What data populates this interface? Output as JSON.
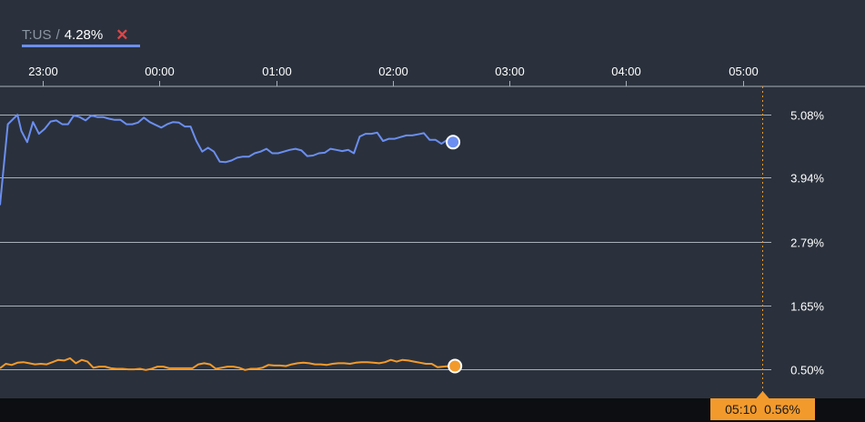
{
  "legend": {
    "symbol": "T:US",
    "separator": "/",
    "value": "4.28%",
    "close_glyph": "✕",
    "underline_color": "#6b8ef0",
    "close_color": "#e24545"
  },
  "crosshair": {
    "time": "05:10",
    "value": "0.56%",
    "color": "#f39a2c"
  },
  "colors": {
    "background": "#2a313c",
    "grid": "#a9b0b8",
    "axis_text": "#ffffff",
    "series_blue": "#6b8ef0",
    "series_orange": "#f39a2c"
  },
  "chart_data": {
    "type": "line",
    "x_ticks": [
      "23:00",
      "00:00",
      "01:00",
      "02:00",
      "03:00",
      "04:00",
      "05:00"
    ],
    "y_ticks": [
      "5.08%",
      "3.94%",
      "2.79%",
      "1.65%",
      "0.50%"
    ],
    "y_tick_values": [
      5.08,
      3.94,
      2.79,
      1.65,
      0.5
    ],
    "ylim": [
      -0.02,
      5.58
    ],
    "x_start": "22:38",
    "x_end": "05:10",
    "grid": true,
    "series": [
      {
        "name": "T:US",
        "color": "#6b8ef0",
        "marker_end": true,
        "points": [
          [
            "22:38",
            3.45
          ],
          [
            "22:42",
            4.9
          ],
          [
            "22:47",
            5.07
          ],
          [
            "22:49",
            4.78
          ],
          [
            "22:52",
            4.58
          ],
          [
            "22:55",
            4.94
          ],
          [
            "22:58",
            4.73
          ],
          [
            "23:01",
            4.82
          ],
          [
            "23:04",
            4.95
          ],
          [
            "23:07",
            4.97
          ],
          [
            "23:10",
            4.9
          ],
          [
            "23:13",
            4.9
          ],
          [
            "23:16",
            5.06
          ],
          [
            "23:19",
            5.03
          ],
          [
            "23:22",
            4.97
          ],
          [
            "23:25",
            5.06
          ],
          [
            "23:28",
            5.03
          ],
          [
            "23:31",
            5.03
          ],
          [
            "23:34",
            5.0
          ],
          [
            "23:37",
            4.98
          ],
          [
            "23:40",
            4.98
          ],
          [
            "23:43",
            4.9
          ],
          [
            "23:46",
            4.9
          ],
          [
            "23:49",
            4.93
          ],
          [
            "23:52",
            5.02
          ],
          [
            "23:55",
            4.94
          ],
          [
            "23:58",
            4.89
          ],
          [
            "00:01",
            4.84
          ],
          [
            "00:04",
            4.9
          ],
          [
            "00:07",
            4.94
          ],
          [
            "00:10",
            4.93
          ],
          [
            "00:13",
            4.86
          ],
          [
            "00:16",
            4.86
          ],
          [
            "00:19",
            4.6
          ],
          [
            "00:22",
            4.41
          ],
          [
            "00:25",
            4.48
          ],
          [
            "00:28",
            4.41
          ],
          [
            "00:31",
            4.23
          ],
          [
            "00:34",
            4.22
          ],
          [
            "00:37",
            4.25
          ],
          [
            "00:40",
            4.3
          ],
          [
            "00:43",
            4.32
          ],
          [
            "00:46",
            4.32
          ],
          [
            "00:49",
            4.38
          ],
          [
            "00:52",
            4.41
          ],
          [
            "00:55",
            4.46
          ],
          [
            "00:58",
            4.38
          ],
          [
            "01:01",
            4.38
          ],
          [
            "01:04",
            4.41
          ],
          [
            "01:07",
            4.44
          ],
          [
            "01:10",
            4.46
          ],
          [
            "01:13",
            4.43
          ],
          [
            "01:16",
            4.33
          ],
          [
            "01:19",
            4.34
          ],
          [
            "01:22",
            4.38
          ],
          [
            "01:25",
            4.39
          ],
          [
            "01:28",
            4.46
          ],
          [
            "01:31",
            4.44
          ],
          [
            "01:34",
            4.42
          ],
          [
            "01:37",
            4.44
          ],
          [
            "01:40",
            4.38
          ],
          [
            "01:43",
            4.68
          ],
          [
            "01:46",
            4.73
          ],
          [
            "01:49",
            4.73
          ],
          [
            "01:52",
            4.75
          ],
          [
            "01:55",
            4.6
          ],
          [
            "01:58",
            4.64
          ],
          [
            "02:01",
            4.64
          ],
          [
            "02:04",
            4.67
          ],
          [
            "02:07",
            4.7
          ],
          [
            "02:10",
            4.7
          ],
          [
            "02:13",
            4.72
          ],
          [
            "02:16",
            4.74
          ],
          [
            "02:19",
            4.62
          ],
          [
            "02:22",
            4.62
          ],
          [
            "02:25",
            4.55
          ],
          [
            "02:28",
            4.62
          ],
          [
            "02:31",
            4.58
          ]
        ]
      },
      {
        "name": "",
        "color": "#f39a2c",
        "marker_end": true,
        "points": [
          [
            "22:38",
            0.52
          ],
          [
            "22:41",
            0.6
          ],
          [
            "22:44",
            0.58
          ],
          [
            "22:47",
            0.62
          ],
          [
            "22:50",
            0.63
          ],
          [
            "22:53",
            0.61
          ],
          [
            "22:56",
            0.59
          ],
          [
            "22:59",
            0.6
          ],
          [
            "23:02",
            0.59
          ],
          [
            "23:05",
            0.63
          ],
          [
            "23:08",
            0.67
          ],
          [
            "23:11",
            0.66
          ],
          [
            "23:14",
            0.7
          ],
          [
            "23:17",
            0.61
          ],
          [
            "23:20",
            0.67
          ],
          [
            "23:23",
            0.64
          ],
          [
            "23:26",
            0.53
          ],
          [
            "23:29",
            0.55
          ],
          [
            "23:32",
            0.55
          ],
          [
            "23:35",
            0.52
          ],
          [
            "23:38",
            0.51
          ],
          [
            "23:41",
            0.51
          ],
          [
            "23:44",
            0.5
          ],
          [
            "23:47",
            0.5
          ],
          [
            "23:50",
            0.51
          ],
          [
            "23:53",
            0.49
          ],
          [
            "23:56",
            0.51
          ],
          [
            "23:59",
            0.55
          ],
          [
            "00:02",
            0.55
          ],
          [
            "00:05",
            0.52
          ],
          [
            "00:08",
            0.52
          ],
          [
            "00:11",
            0.52
          ],
          [
            "00:14",
            0.52
          ],
          [
            "00:17",
            0.52
          ],
          [
            "00:20",
            0.59
          ],
          [
            "00:23",
            0.61
          ],
          [
            "00:26",
            0.59
          ],
          [
            "00:29",
            0.51
          ],
          [
            "00:32",
            0.53
          ],
          [
            "00:35",
            0.55
          ],
          [
            "00:38",
            0.55
          ],
          [
            "00:41",
            0.53
          ],
          [
            "00:44",
            0.49
          ],
          [
            "00:47",
            0.51
          ],
          [
            "00:50",
            0.51
          ],
          [
            "00:53",
            0.53
          ],
          [
            "00:56",
            0.58
          ],
          [
            "00:59",
            0.57
          ],
          [
            "01:02",
            0.57
          ],
          [
            "01:05",
            0.56
          ],
          [
            "01:08",
            0.59
          ],
          [
            "01:11",
            0.61
          ],
          [
            "01:14",
            0.62
          ],
          [
            "01:17",
            0.61
          ],
          [
            "01:20",
            0.59
          ],
          [
            "01:23",
            0.59
          ],
          [
            "01:26",
            0.58
          ],
          [
            "01:29",
            0.6
          ],
          [
            "01:32",
            0.61
          ],
          [
            "01:35",
            0.61
          ],
          [
            "01:38",
            0.6
          ],
          [
            "01:41",
            0.62
          ],
          [
            "01:44",
            0.63
          ],
          [
            "01:47",
            0.63
          ],
          [
            "01:50",
            0.62
          ],
          [
            "01:53",
            0.61
          ],
          [
            "01:56",
            0.63
          ],
          [
            "01:59",
            0.67
          ],
          [
            "02:02",
            0.64
          ],
          [
            "02:05",
            0.67
          ],
          [
            "02:08",
            0.66
          ],
          [
            "02:11",
            0.64
          ],
          [
            "02:14",
            0.62
          ],
          [
            "02:17",
            0.6
          ],
          [
            "02:20",
            0.6
          ],
          [
            "02:23",
            0.54
          ],
          [
            "02:26",
            0.55
          ],
          [
            "02:29",
            0.56
          ],
          [
            "02:32",
            0.56
          ]
        ]
      }
    ]
  }
}
